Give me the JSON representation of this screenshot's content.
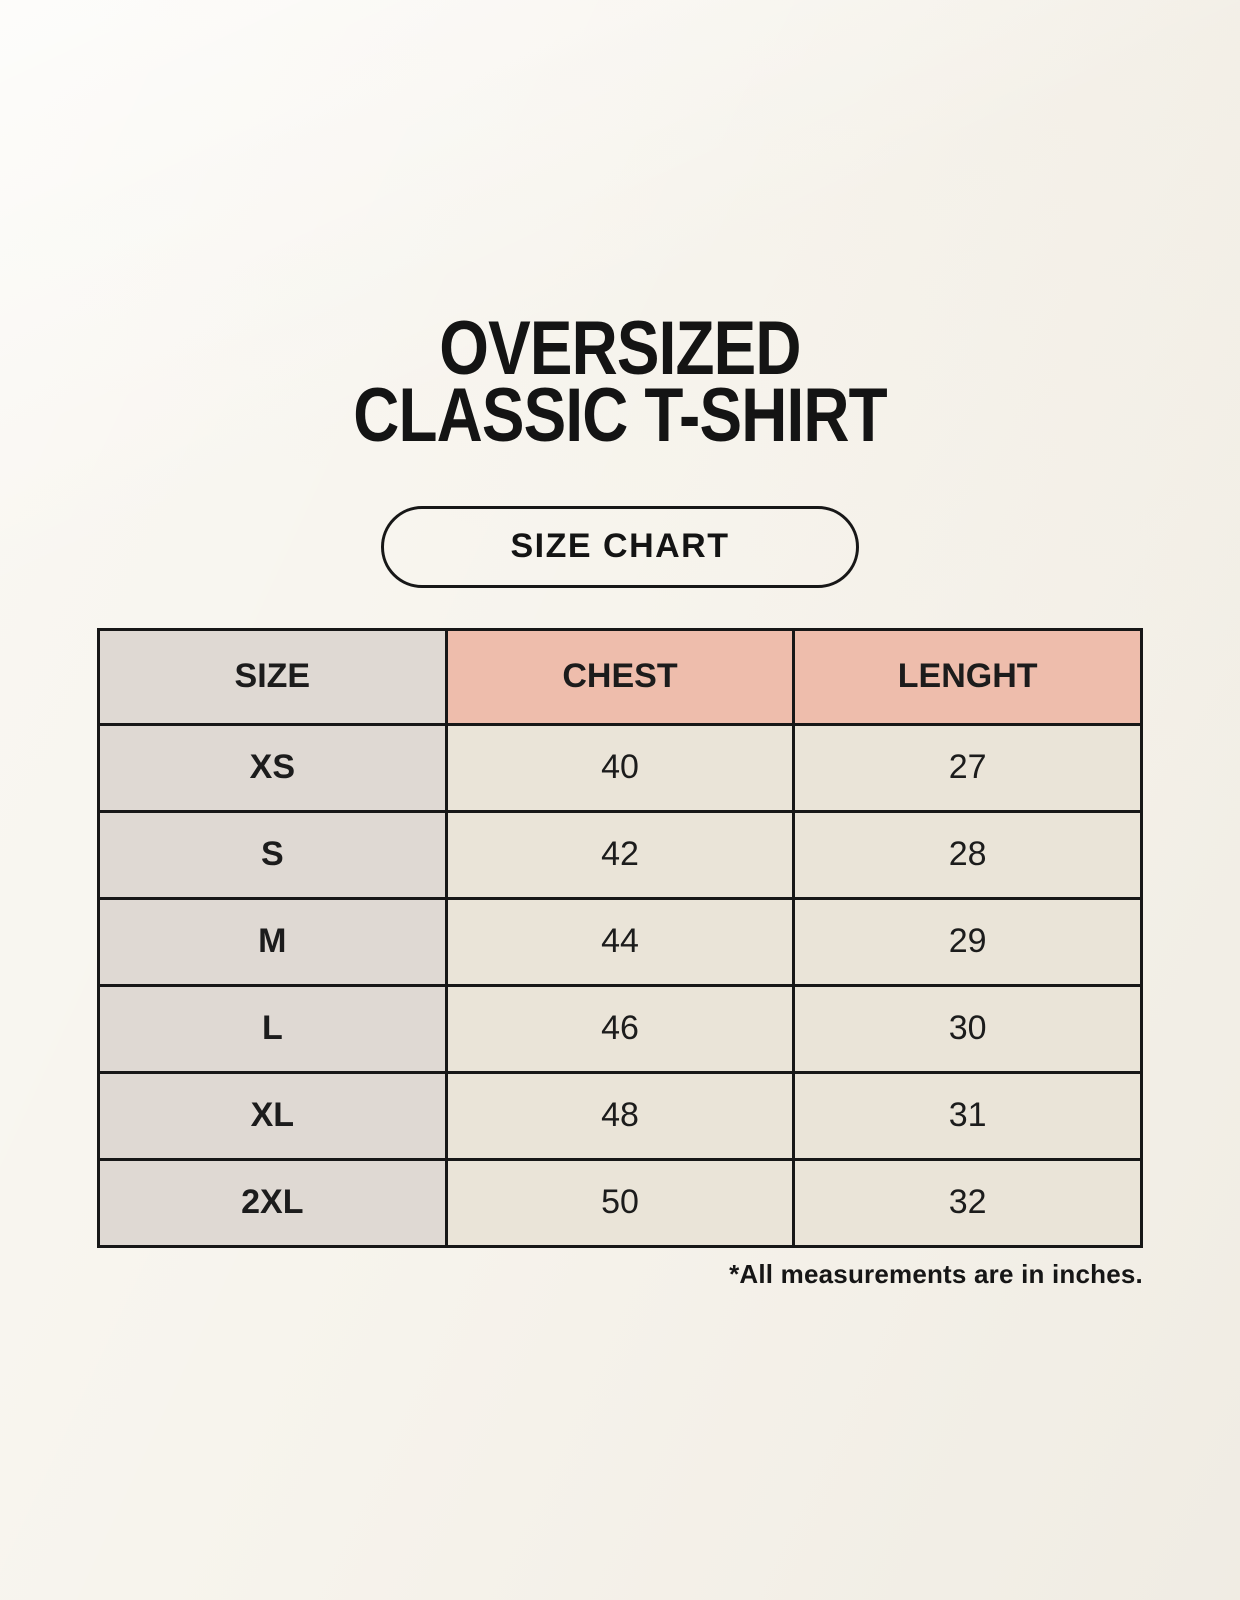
{
  "page": {
    "title_line1": "OVERSIZED",
    "title_line2": "CLASSIC T-SHIRT",
    "size_chart_label": "SIZE CHART",
    "footnote": "*All measurements are in inches."
  },
  "colors": {
    "background": "#f7f4ed",
    "accent_salmon": "#eebdac",
    "size_column_gray": "#dfd9d3",
    "cell_cream": "#eae4d8",
    "border_black": "#171717",
    "text_black": "#1c1c1c"
  },
  "chart_data": {
    "type": "table",
    "title": "OVERSIZED CLASSIC T-SHIRT",
    "subtitle": "SIZE CHART",
    "columns": [
      "SIZE",
      "CHEST",
      "LENGHT"
    ],
    "rows": [
      [
        "XS",
        "40",
        "27"
      ],
      [
        "S",
        "42",
        "28"
      ],
      [
        "M",
        "44",
        "29"
      ],
      [
        "L",
        "46",
        "30"
      ],
      [
        "XL",
        "48",
        "31"
      ],
      [
        "2XL",
        "50",
        "32"
      ]
    ],
    "footnote": "*All measurements are in inches.",
    "layout": "header row: col 1 gray, cols 2-3 salmon; body: col 1 gray bold, data cells cream"
  }
}
